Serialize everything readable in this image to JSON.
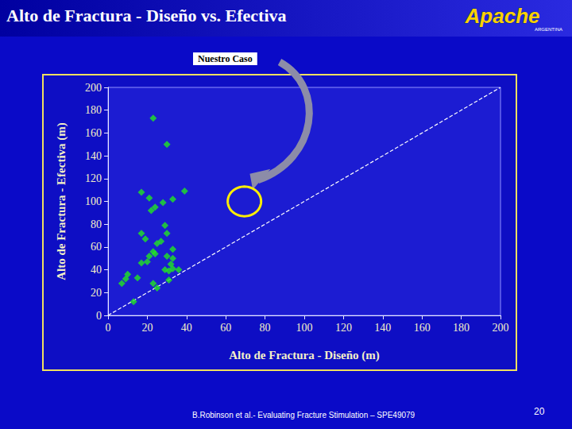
{
  "title": "Alto de Fractura - Diseño vs. Efectiva",
  "logo": {
    "text": "Apache",
    "subtext": "ARGENTINA"
  },
  "source": "B.Robinson et al.- Evaluating Fracture Stimulation – SPE49079",
  "page": 20,
  "chart_data": {
    "type": "scatter",
    "x_label": "Alto de Fractura - Diseño (m)",
    "y_label": "Alto de Fractura - Efectiva (m)",
    "xlim": [
      0,
      200
    ],
    "ylim": [
      0,
      200
    ],
    "xticks": [
      0,
      20,
      40,
      60,
      80,
      100,
      120,
      140,
      160,
      180,
      200
    ],
    "yticks": [
      0,
      20,
      40,
      60,
      80,
      100,
      120,
      140,
      160,
      180,
      200
    ],
    "grid": false,
    "series": [
      {
        "type": "scatter",
        "marker": "diamond",
        "color": "#22e622",
        "x": [
          23,
          30,
          17,
          21,
          39,
          33,
          28,
          24,
          22,
          29,
          30,
          17,
          19,
          27,
          25,
          33,
          23,
          21,
          24,
          30,
          33,
          20,
          17,
          32,
          29,
          36,
          33,
          31,
          10,
          15,
          9,
          31,
          7,
          23,
          25,
          13
        ],
        "values": [
          173,
          150,
          108,
          103,
          109,
          102,
          99,
          95,
          92,
          79,
          72,
          72,
          67,
          65,
          63,
          58,
          56,
          52,
          54,
          52,
          50,
          47,
          46,
          45,
          40,
          40,
          41,
          39,
          36,
          33,
          32,
          31,
          28,
          28,
          24,
          12
        ]
      },
      {
        "type": "line",
        "line_style": "dashed",
        "color": "#ffffff",
        "x": [
          0,
          200
        ],
        "values": [
          0,
          200
        ]
      }
    ],
    "annotation": {
      "text": "Nuestro Caso",
      "x": [
        61,
        78
      ],
      "y": [
        87,
        113
      ]
    }
  }
}
